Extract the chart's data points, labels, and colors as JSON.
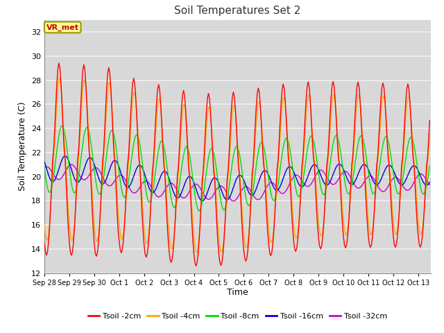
{
  "title": "Soil Temperatures Set 2",
  "xlabel": "Time",
  "ylabel": "Soil Temperature (C)",
  "ylim": [
    12,
    33
  ],
  "yticks": [
    12,
    14,
    16,
    18,
    20,
    22,
    24,
    26,
    28,
    30,
    32
  ],
  "num_days": 15.5,
  "background_color": "#d8d8d8",
  "grid_color": "#f0f0f0",
  "lines": [
    {
      "label": "Tsoil -2cm",
      "color": "#ff0000"
    },
    {
      "label": "Tsoil -4cm",
      "color": "#ffa500"
    },
    {
      "label": "Tsoil -8cm",
      "color": "#00dd00"
    },
    {
      "label": "Tsoil -16cm",
      "color": "#0000dd"
    },
    {
      "label": "Tsoil -32cm",
      "color": "#cc00cc"
    }
  ],
  "xtick_labels": [
    "Sep 28",
    "Sep 29",
    "Sep 30",
    "Oct 1",
    "Oct 2",
    "Oct 3",
    "Oct 4",
    "Oct 5",
    "Oct 6",
    "Oct 7",
    "Oct 8",
    "Oct 9",
    "Oct 10",
    "Oct 11",
    "Oct 12",
    "Oct 13"
  ],
  "legend_annotation": "VR_met",
  "legend_ann_facecolor": "#ffff99",
  "legend_ann_edgecolor": "#999900",
  "legend_ann_textcolor": "#cc0000"
}
